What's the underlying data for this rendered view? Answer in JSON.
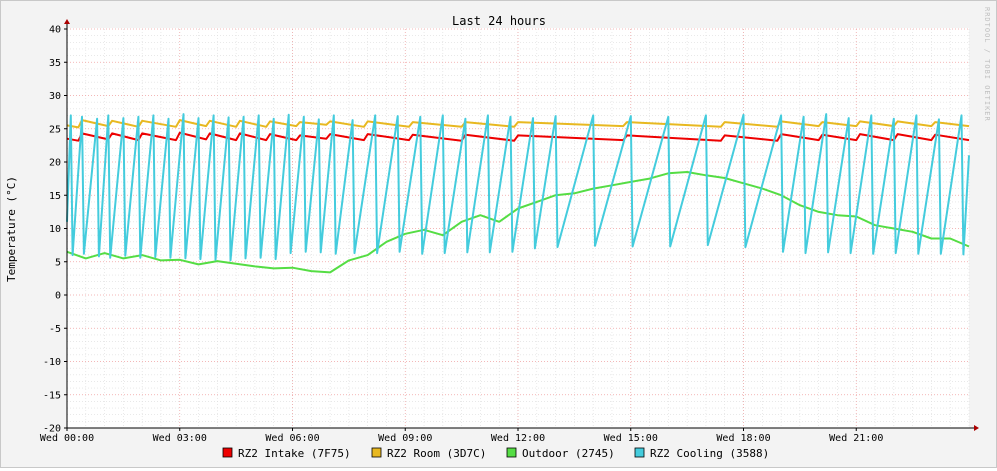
{
  "chart_data": {
    "type": "line",
    "title": "Last 24 hours",
    "ylabel": "Temperature (°C)",
    "xlabel": "",
    "watermark": "RRDTOOL / TOBI OETIKER",
    "ylim": [
      -20,
      40
    ],
    "yticks": [
      40,
      35,
      30,
      25,
      20,
      15,
      10,
      5,
      0,
      -5,
      -10,
      -15,
      -20
    ],
    "xlim": [
      0,
      24
    ],
    "x_unit": "hours since Wed 00:00",
    "xticks": [
      {
        "hour": 0,
        "label": "Wed 00:00"
      },
      {
        "hour": 3,
        "label": "Wed 03:00"
      },
      {
        "hour": 6,
        "label": "Wed 06:00"
      },
      {
        "hour": 9,
        "label": "Wed 09:00"
      },
      {
        "hour": 12,
        "label": "Wed 12:00"
      },
      {
        "hour": 15,
        "label": "Wed 15:00"
      },
      {
        "hour": 18,
        "label": "Wed 18:00"
      },
      {
        "hour": 21,
        "label": "Wed 21:00"
      }
    ],
    "grid": true,
    "legend_position": "bottom",
    "series": [
      {
        "name": "RZ2 Intake (7F75)",
        "color": "#ee0000",
        "x": [
          0,
          0.3,
          0.4,
          1.1,
          1.2,
          1.9,
          2.0,
          2.9,
          3.0,
          3.7,
          3.8,
          4.5,
          4.6,
          5.3,
          5.4,
          6.1,
          6.2,
          6.9,
          7.0,
          7.9,
          8.0,
          9.1,
          9.2,
          10.5,
          10.6,
          11.9,
          12.0,
          14.8,
          14.9,
          17.4,
          17.5,
          18.9,
          19.0,
          20.0,
          20.1,
          21.0,
          21.1,
          22.0,
          22.1,
          23.0,
          23.1,
          24.0
        ],
        "y": [
          23.5,
          23.2,
          24.3,
          23.4,
          24.3,
          23.3,
          24.3,
          23.3,
          24.4,
          23.4,
          24.3,
          23.3,
          24.3,
          23.3,
          24.2,
          23.3,
          24.0,
          23.5,
          24.2,
          23.3,
          24.2,
          23.3,
          24.1,
          23.2,
          24.1,
          23.2,
          24.0,
          23.3,
          24.0,
          23.2,
          24.0,
          23.2,
          24.2,
          23.3,
          24.1,
          23.3,
          24.2,
          23.3,
          24.2,
          23.3,
          24.1,
          23.3
        ]
      },
      {
        "name": "RZ2 Room (3D7C)",
        "color": "#e8b820",
        "x": [
          0,
          0.3,
          0.4,
          1.1,
          1.2,
          1.9,
          2.0,
          2.9,
          3.0,
          3.7,
          3.8,
          4.5,
          4.6,
          5.3,
          5.4,
          6.1,
          6.2,
          6.9,
          7.0,
          7.9,
          8.0,
          9.1,
          9.2,
          10.5,
          10.6,
          11.9,
          12.0,
          14.8,
          14.9,
          17.4,
          17.5,
          18.9,
          19.0,
          20.0,
          20.1,
          21.0,
          21.1,
          22.0,
          22.1,
          23.0,
          23.1,
          24.0
        ],
        "y": [
          25.5,
          25.2,
          26.3,
          25.4,
          26.2,
          25.3,
          26.2,
          25.3,
          26.3,
          25.4,
          26.2,
          25.3,
          26.2,
          25.3,
          26.1,
          25.4,
          26.0,
          25.6,
          26.1,
          25.3,
          26.1,
          25.3,
          26.0,
          25.3,
          26.0,
          25.3,
          26.0,
          25.4,
          26.0,
          25.3,
          26.0,
          25.3,
          26.1,
          25.4,
          26.0,
          25.4,
          26.1,
          25.4,
          26.1,
          25.4,
          26.0,
          25.4
        ]
      },
      {
        "name": "Outdoor (2745)",
        "color": "#55dd44",
        "x": [
          0,
          0.5,
          1.0,
          1.5,
          2.0,
          2.5,
          3.0,
          3.5,
          4.0,
          4.5,
          5.0,
          5.5,
          6.0,
          6.5,
          7.0,
          7.5,
          8.0,
          8.5,
          9.0,
          9.5,
          10.0,
          10.5,
          11.0,
          11.5,
          12.0,
          12.5,
          13.0,
          13.5,
          14.0,
          14.5,
          15.0,
          15.5,
          16.0,
          16.5,
          17.0,
          17.5,
          18.0,
          18.5,
          19.0,
          19.5,
          20.0,
          20.5,
          21.0,
          21.5,
          22.0,
          22.5,
          23.0,
          23.5,
          24.0
        ],
        "y": [
          6.5,
          5.5,
          6.3,
          5.5,
          6.0,
          5.2,
          5.3,
          4.6,
          5.1,
          4.7,
          4.3,
          4.0,
          4.1,
          3.6,
          3.4,
          5.2,
          6.0,
          8.0,
          9.2,
          9.8,
          9.0,
          11.0,
          12.0,
          11.0,
          13.0,
          14.0,
          15.0,
          15.3,
          16.0,
          16.5,
          17.0,
          17.5,
          18.3,
          18.5,
          18.0,
          17.6,
          16.8,
          16.0,
          15.0,
          13.5,
          12.5,
          12.0,
          11.8,
          10.5,
          10.0,
          9.5,
          8.5,
          8.5,
          7.3
        ]
      },
      {
        "name": "RZ2 Cooling (3588)",
        "color": "#44ccdd",
        "x": [
          0,
          0.1,
          0.15,
          0.4,
          0.45,
          0.8,
          0.85,
          1.1,
          1.15,
          1.5,
          1.55,
          1.9,
          1.95,
          2.3,
          2.35,
          2.7,
          2.75,
          3.1,
          3.15,
          3.5,
          3.55,
          3.9,
          3.95,
          4.3,
          4.35,
          4.7,
          4.75,
          5.1,
          5.15,
          5.5,
          5.55,
          5.9,
          5.95,
          6.3,
          6.35,
          6.7,
          6.75,
          7.1,
          7.15,
          7.6,
          7.65,
          8.2,
          8.25,
          8.8,
          8.85,
          9.4,
          9.45,
          10.0,
          10.05,
          10.6,
          10.65,
          11.2,
          11.25,
          11.8,
          11.85,
          12.4,
          12.45,
          13.0,
          13.05,
          14.0,
          14.05,
          15.0,
          15.05,
          16.0,
          16.05,
          17.0,
          17.05,
          18.0,
          18.05,
          19.0,
          19.05,
          19.6,
          19.65,
          20.2,
          20.25,
          20.8,
          20.85,
          21.4,
          21.45,
          22.0,
          22.05,
          22.6,
          22.65,
          23.2,
          23.25,
          23.8,
          23.85,
          24.0
        ],
        "y": [
          11,
          27,
          6,
          26.8,
          6.2,
          26.5,
          5.8,
          27,
          5.6,
          26.6,
          5.9,
          26.8,
          5.6,
          27,
          5.7,
          26.5,
          5.6,
          27.2,
          5.5,
          26.6,
          5.4,
          27,
          5.3,
          26.7,
          5.2,
          26.8,
          5.5,
          27,
          5.6,
          26.5,
          5.4,
          27.1,
          6.3,
          26.8,
          6.5,
          26.4,
          6.4,
          27,
          6.2,
          26.3,
          6.3,
          27,
          6.3,
          26.9,
          6.5,
          26.8,
          6.2,
          27.0,
          6.3,
          26.5,
          6.4,
          27.0,
          6.4,
          26.8,
          6.5,
          26.6,
          7.0,
          26.9,
          7.2,
          27.0,
          7.4,
          26.9,
          7.3,
          26.8,
          7.3,
          27.0,
          7.5,
          27.1,
          7.2,
          27.0,
          6.5,
          26.8,
          6.3,
          27.2,
          6.4,
          26.6,
          6.3,
          27.0,
          6.2,
          26.5,
          6.3,
          27.0,
          6.2,
          26.4,
          6.2,
          27.0,
          6.1,
          21.0
        ]
      }
    ]
  }
}
